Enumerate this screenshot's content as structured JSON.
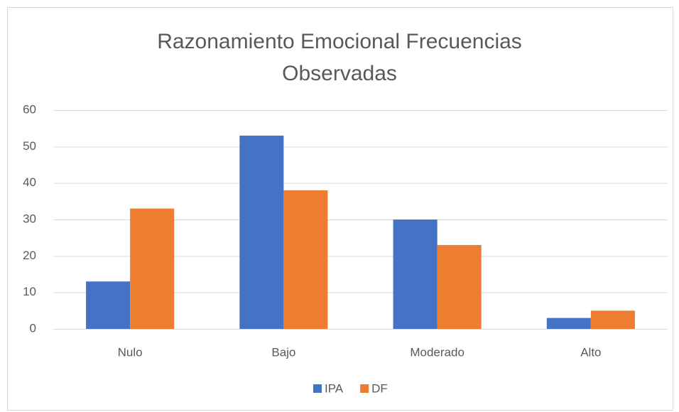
{
  "chart_data": {
    "type": "bar",
    "title": "Razonamiento Emocional Frecuencias Observadas",
    "categories": [
      "Nulo",
      "Bajo",
      "Moderado",
      "Alto"
    ],
    "series": [
      {
        "name": "IPA",
        "color": "#4472c4",
        "values": [
          13,
          53,
          30,
          3
        ]
      },
      {
        "name": "DF",
        "color": "#ed7d31",
        "values": [
          33,
          38,
          23,
          5
        ]
      }
    ],
    "ylim": [
      0,
      60
    ],
    "yticks": [
      0,
      10,
      20,
      30,
      40,
      50,
      60
    ],
    "grid": true,
    "legend": "bottom"
  }
}
